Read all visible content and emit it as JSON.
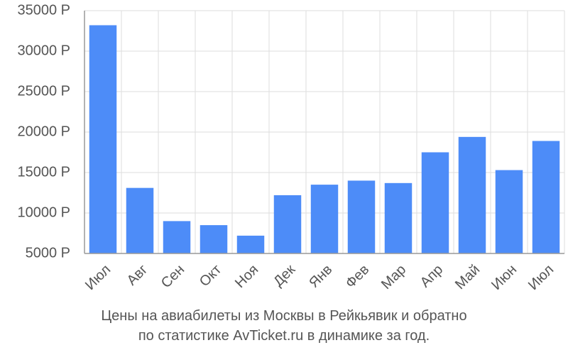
{
  "chart_data": {
    "type": "bar",
    "categories": [
      "Июл",
      "Авг",
      "Сен",
      "Окт",
      "Ноя",
      "Дек",
      "Янв",
      "Фев",
      "Мар",
      "Апр",
      "Май",
      "Июн",
      "Июл"
    ],
    "values": [
      33200,
      13100,
      9000,
      8500,
      7200,
      12200,
      13500,
      14000,
      13700,
      17500,
      19400,
      15300,
      18900
    ],
    "yticks": [
      5000,
      10000,
      15000,
      20000,
      25000,
      30000,
      35000
    ],
    "ytick_labels": [
      "5000 Р",
      "10000 Р",
      "15000 Р",
      "20000 Р",
      "25000 Р",
      "30000 Р",
      "35000 Р"
    ],
    "ylim": [
      5000,
      35000
    ],
    "grid": true,
    "bar_color": "#4d8cf8",
    "grid_color": "#dddddd",
    "axis_color": "#999999",
    "tick_label_color": "#555555",
    "caption_line1": "Цены на авиабилеты из Москвы в Рейкьявик и обратно",
    "caption_line2": "по статистике AvTicket.ru в динамике за год."
  }
}
